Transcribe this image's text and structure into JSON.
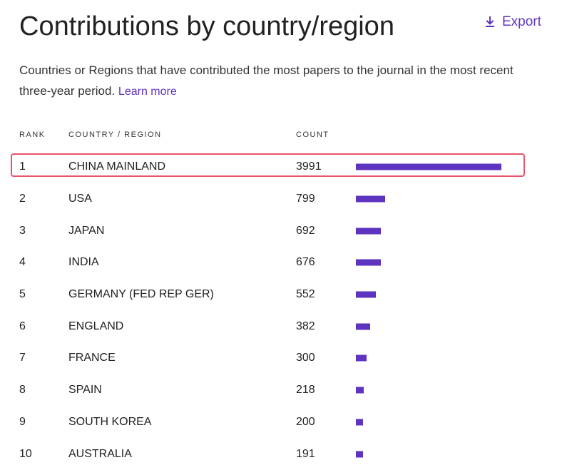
{
  "header": {
    "title": "Contributions by country/region",
    "export_label": "Export"
  },
  "description": {
    "text": "Countries or Regions that have contributed the most papers to the journal in the most recent three-year period.",
    "learn_more_label": "Learn more"
  },
  "table": {
    "columns": {
      "rank": "RANK",
      "country": "COUNTRY / REGION",
      "count": "COUNT"
    },
    "rows": [
      {
        "rank": "1",
        "country": "CHINA MAINLAND",
        "count": "3991"
      },
      {
        "rank": "2",
        "country": "USA",
        "count": "799"
      },
      {
        "rank": "3",
        "country": "JAPAN",
        "count": "692"
      },
      {
        "rank": "4",
        "country": "INDIA",
        "count": "676"
      },
      {
        "rank": "5",
        "country": "GERMANY (FED REP GER)",
        "count": "552"
      },
      {
        "rank": "6",
        "country": "ENGLAND",
        "count": "382"
      },
      {
        "rank": "7",
        "country": "FRANCE",
        "count": "300"
      },
      {
        "rank": "8",
        "country": "SPAIN",
        "count": "218"
      },
      {
        "rank": "9",
        "country": "SOUTH KOREA",
        "count": "200"
      },
      {
        "rank": "10",
        "country": "AUSTRALIA",
        "count": "191"
      }
    ],
    "highlighted_rank": "1",
    "bar_color": "#5e33bf",
    "highlight_color": "#e8536a"
  },
  "icons": {
    "export": "download-icon"
  }
}
